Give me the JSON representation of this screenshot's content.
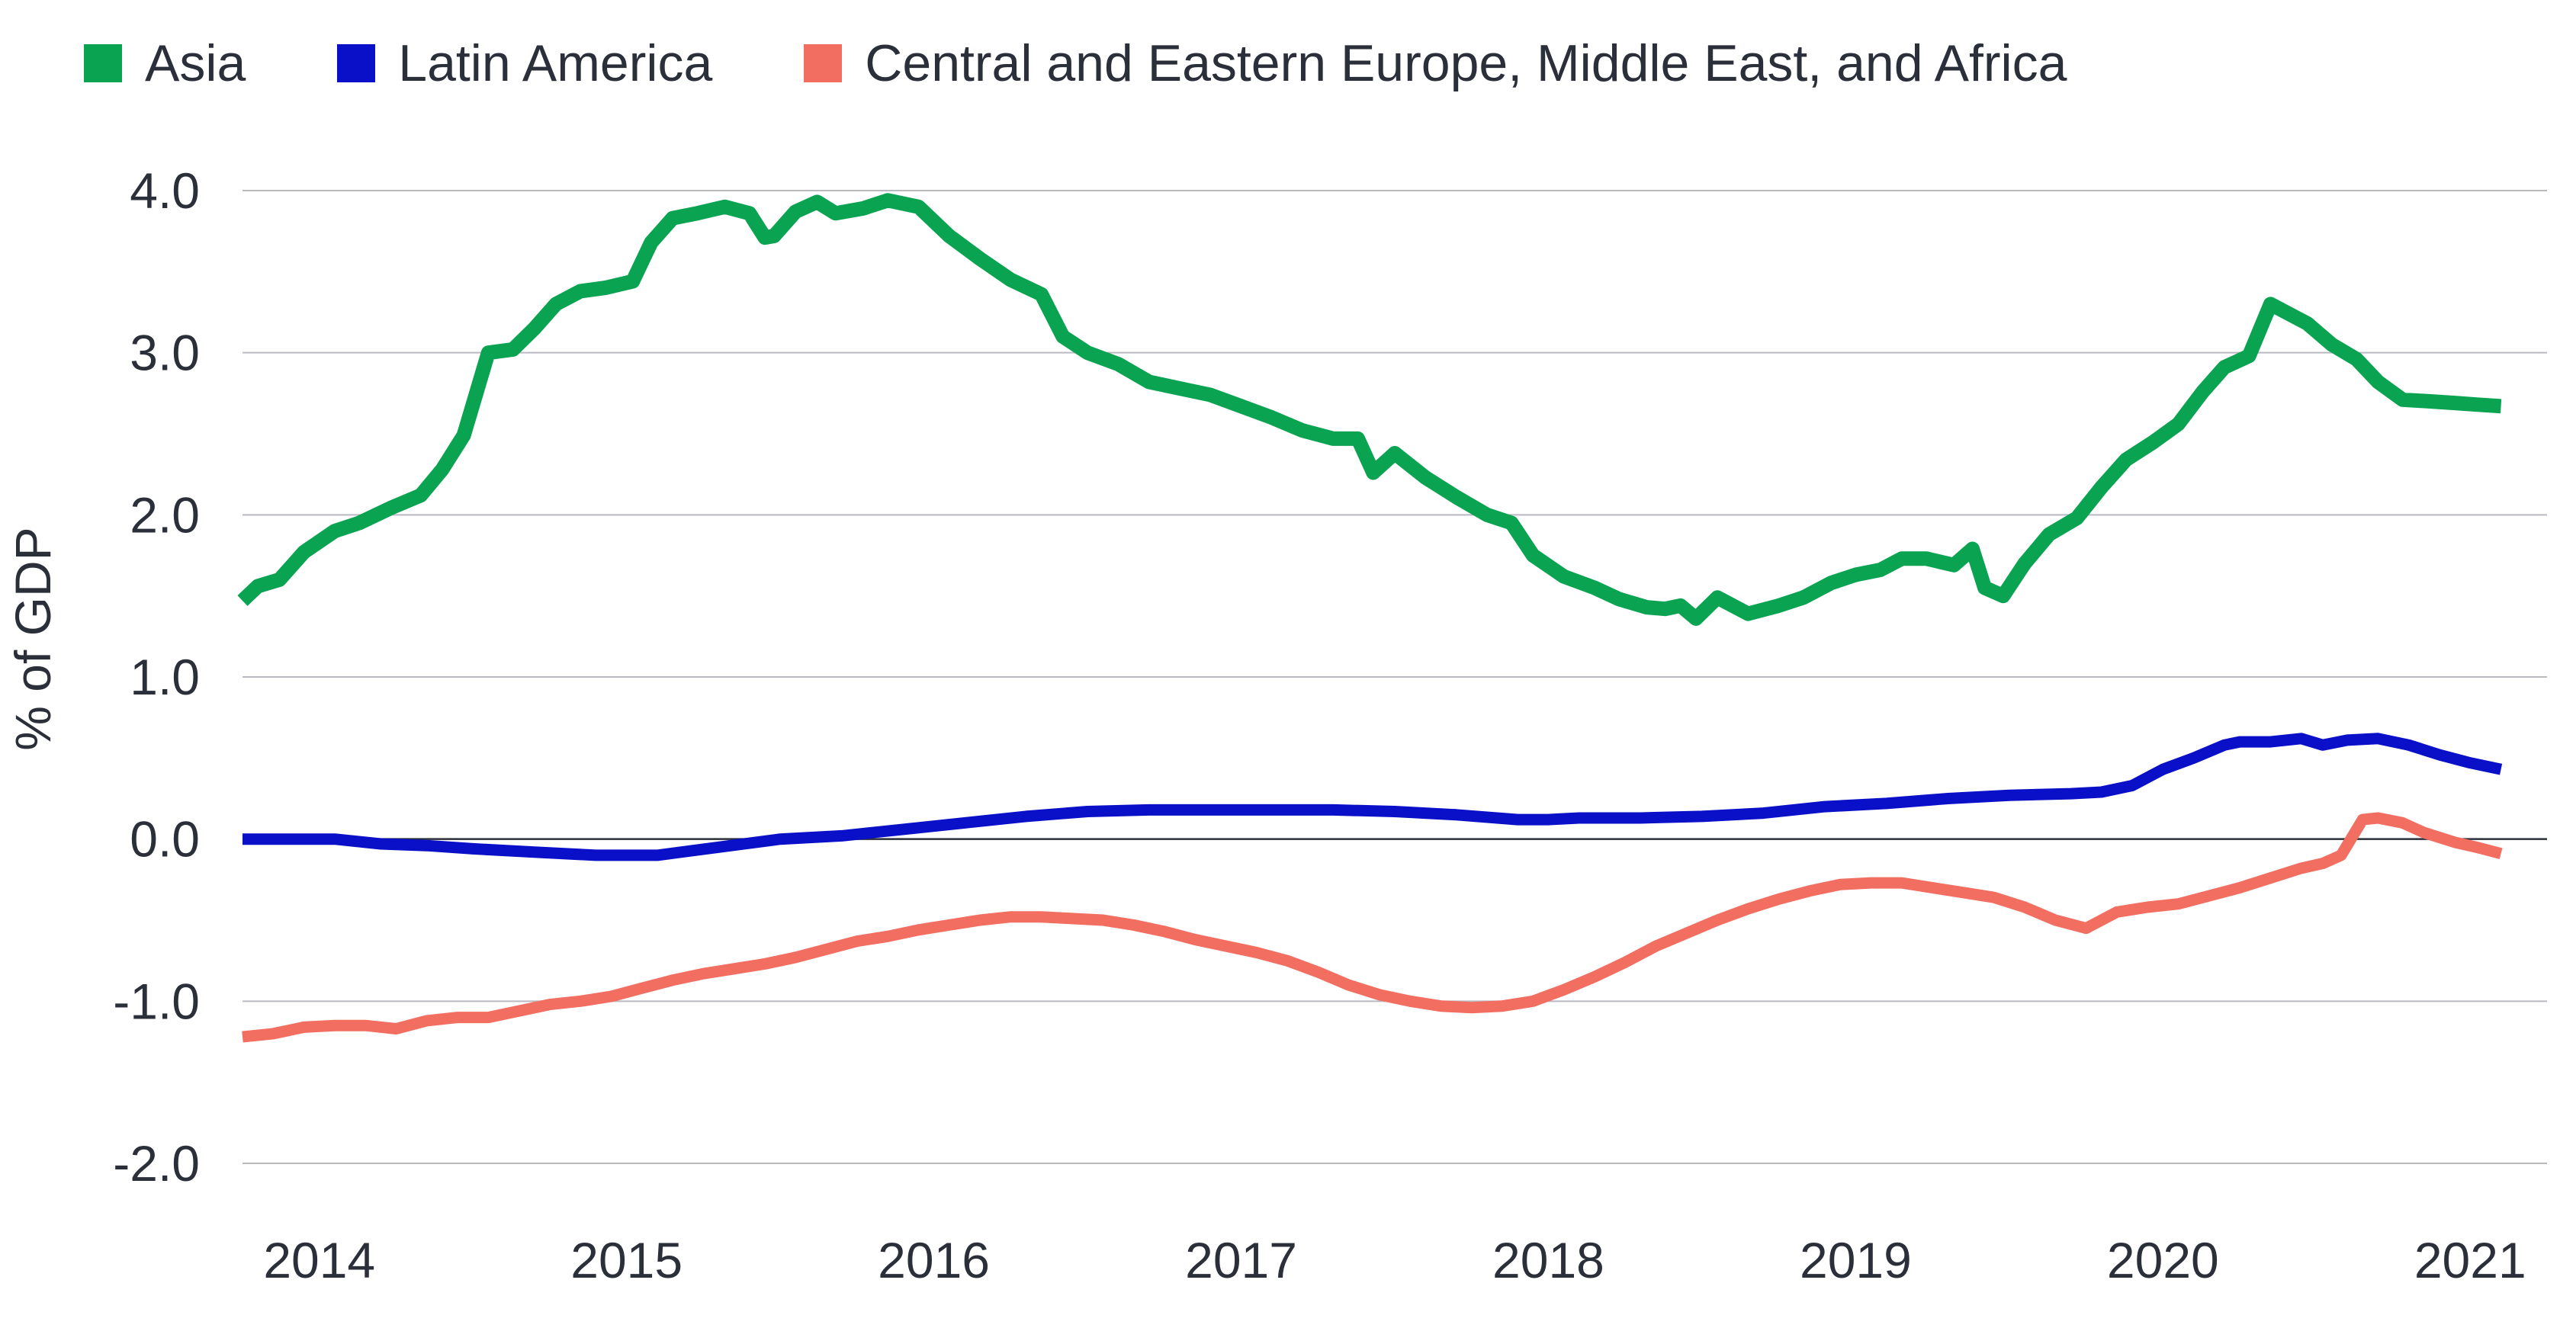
{
  "chart_data": {
    "type": "line",
    "title": "",
    "xlabel": "",
    "ylabel": "% of GDP",
    "ylim": [
      -2.0,
      4.0
    ],
    "yticks": [
      -2.0,
      -1.0,
      0.0,
      1.0,
      2.0,
      3.0,
      4.0
    ],
    "ytick_labels": [
      "-2.0",
      "-1.0",
      "0.0",
      "1.0",
      "2.0",
      "3.0",
      "4.0"
    ],
    "xlim": [
      2013.85,
      2021.35
    ],
    "xticks": [
      2014.1,
      2015.1,
      2016.1,
      2017.1,
      2018.1,
      2019.1,
      2020.1,
      2021.1
    ],
    "xtick_labels": [
      "2014",
      "2015",
      "2016",
      "2017",
      "2018",
      "2019",
      "2020",
      "2021"
    ],
    "grid": true,
    "legend_position": "top",
    "series": [
      {
        "name": "Asia",
        "color": "#0aa351",
        "x": [
          2013.85,
          2013.9,
          2013.97,
          2014.05,
          2014.15,
          2014.23,
          2014.33,
          2014.43,
          2014.5,
          2014.57,
          2014.65,
          2014.73,
          2014.8,
          2014.87,
          2014.95,
          2015.03,
          2015.12,
          2015.18,
          2015.25,
          2015.33,
          2015.42,
          2015.5,
          2015.55,
          2015.58,
          2015.65,
          2015.72,
          2015.78,
          2015.87,
          2015.95,
          2016.05,
          2016.15,
          2016.25,
          2016.35,
          2016.45,
          2016.52,
          2016.6,
          2016.7,
          2016.8,
          2016.9,
          2017.0,
          2017.1,
          2017.2,
          2017.3,
          2017.4,
          2017.48,
          2017.53,
          2017.6,
          2017.7,
          2017.8,
          2017.9,
          2017.98,
          2018.05,
          2018.15,
          2018.25,
          2018.33,
          2018.42,
          2018.48,
          2018.53,
          2018.58,
          2018.65,
          2018.75,
          2018.85,
          2018.93,
          2019.02,
          2019.1,
          2019.18,
          2019.25,
          2019.33,
          2019.42,
          2019.48,
          2019.52,
          2019.58,
          2019.65,
          2019.73,
          2019.82,
          2019.9,
          2019.98,
          2020.07,
          2020.15,
          2020.23,
          2020.3,
          2020.38,
          2020.45,
          2020.5,
          2020.57,
          2020.65,
          2020.73,
          2020.8,
          2020.88,
          2020.97,
          2021.05,
          2021.12,
          2021.2
        ],
        "values": [
          1.47,
          1.56,
          1.6,
          1.77,
          1.9,
          1.95,
          2.04,
          2.12,
          2.28,
          2.49,
          3.0,
          3.02,
          3.15,
          3.3,
          3.38,
          3.4,
          3.44,
          3.68,
          3.83,
          3.86,
          3.9,
          3.86,
          3.71,
          3.72,
          3.87,
          3.93,
          3.86,
          3.89,
          3.94,
          3.9,
          3.72,
          3.58,
          3.45,
          3.36,
          3.1,
          3.0,
          2.93,
          2.82,
          2.78,
          2.74,
          2.67,
          2.6,
          2.52,
          2.47,
          2.47,
          2.26,
          2.38,
          2.23,
          2.11,
          2.0,
          1.95,
          1.75,
          1.62,
          1.55,
          1.48,
          1.43,
          1.42,
          1.44,
          1.36,
          1.49,
          1.39,
          1.44,
          1.49,
          1.58,
          1.63,
          1.66,
          1.73,
          1.73,
          1.69,
          1.79,
          1.55,
          1.5,
          1.7,
          1.88,
          1.98,
          2.17,
          2.34,
          2.45,
          2.56,
          2.76,
          2.91,
          2.98,
          3.3,
          3.25,
          3.18,
          3.05,
          2.96,
          2.82,
          2.71,
          2.7,
          2.69,
          2.68,
          2.67
        ]
      },
      {
        "name": "Latin America",
        "color": "#0a10c8",
        "x": [
          2013.85,
          2014.0,
          2014.15,
          2014.3,
          2014.45,
          2014.6,
          2014.8,
          2015.0,
          2015.2,
          2015.4,
          2015.6,
          2015.8,
          2016.0,
          2016.2,
          2016.4,
          2016.6,
          2016.8,
          2017.0,
          2017.2,
          2017.4,
          2017.6,
          2017.8,
          2018.0,
          2018.1,
          2018.2,
          2018.4,
          2018.6,
          2018.8,
          2019.0,
          2019.2,
          2019.4,
          2019.6,
          2019.8,
          2019.9,
          2020.0,
          2020.1,
          2020.2,
          2020.3,
          2020.35,
          2020.45,
          2020.55,
          2020.62,
          2020.7,
          2020.8,
          2020.9,
          2021.0,
          2021.1,
          2021.2
        ],
        "values": [
          0.0,
          0.0,
          0.0,
          -0.03,
          -0.04,
          -0.06,
          -0.08,
          -0.1,
          -0.1,
          -0.05,
          0.0,
          0.02,
          0.06,
          0.1,
          0.14,
          0.17,
          0.18,
          0.18,
          0.18,
          0.18,
          0.17,
          0.15,
          0.12,
          0.12,
          0.13,
          0.13,
          0.14,
          0.16,
          0.2,
          0.22,
          0.25,
          0.27,
          0.28,
          0.29,
          0.33,
          0.43,
          0.5,
          0.58,
          0.6,
          0.6,
          0.62,
          0.58,
          0.61,
          0.62,
          0.58,
          0.52,
          0.47,
          0.43
        ]
      },
      {
        "name": "Central and Eastern Europe, Middle East, and Africa",
        "color": "#f26e60",
        "x": [
          2013.85,
          2013.95,
          2014.05,
          2014.15,
          2014.25,
          2014.35,
          2014.45,
          2014.55,
          2014.65,
          2014.75,
          2014.85,
          2014.95,
          2015.05,
          2015.15,
          2015.25,
          2015.35,
          2015.45,
          2015.55,
          2015.65,
          2015.75,
          2015.85,
          2015.95,
          2016.05,
          2016.15,
          2016.25,
          2016.35,
          2016.45,
          2016.55,
          2016.65,
          2016.75,
          2016.85,
          2016.95,
          2017.05,
          2017.15,
          2017.25,
          2017.35,
          2017.45,
          2017.55,
          2017.65,
          2017.75,
          2017.85,
          2017.95,
          2018.05,
          2018.15,
          2018.25,
          2018.35,
          2018.45,
          2018.55,
          2018.65,
          2018.75,
          2018.85,
          2018.95,
          2019.05,
          2019.15,
          2019.25,
          2019.35,
          2019.45,
          2019.55,
          2019.65,
          2019.75,
          2019.85,
          2019.95,
          2020.05,
          2020.15,
          2020.25,
          2020.35,
          2020.45,
          2020.55,
          2020.62,
          2020.68,
          2020.75,
          2020.8,
          2020.88,
          2020.95,
          2021.05,
          2021.12,
          2021.2
        ],
        "values": [
          -1.22,
          -1.2,
          -1.16,
          -1.15,
          -1.15,
          -1.17,
          -1.12,
          -1.1,
          -1.1,
          -1.06,
          -1.02,
          -1.0,
          -0.97,
          -0.92,
          -0.87,
          -0.83,
          -0.8,
          -0.77,
          -0.73,
          -0.68,
          -0.63,
          -0.6,
          -0.56,
          -0.53,
          -0.5,
          -0.48,
          -0.48,
          -0.49,
          -0.5,
          -0.53,
          -0.57,
          -0.62,
          -0.66,
          -0.7,
          -0.75,
          -0.82,
          -0.9,
          -0.96,
          -1.0,
          -1.03,
          -1.04,
          -1.03,
          -1.0,
          -0.93,
          -0.85,
          -0.76,
          -0.66,
          -0.58,
          -0.5,
          -0.43,
          -0.37,
          -0.32,
          -0.28,
          -0.27,
          -0.27,
          -0.3,
          -0.33,
          -0.36,
          -0.42,
          -0.5,
          -0.55,
          -0.45,
          -0.42,
          -0.4,
          -0.35,
          -0.3,
          -0.24,
          -0.18,
          -0.15,
          -0.1,
          0.12,
          0.13,
          0.1,
          0.04,
          -0.02,
          -0.05,
          -0.09
        ]
      }
    ]
  }
}
